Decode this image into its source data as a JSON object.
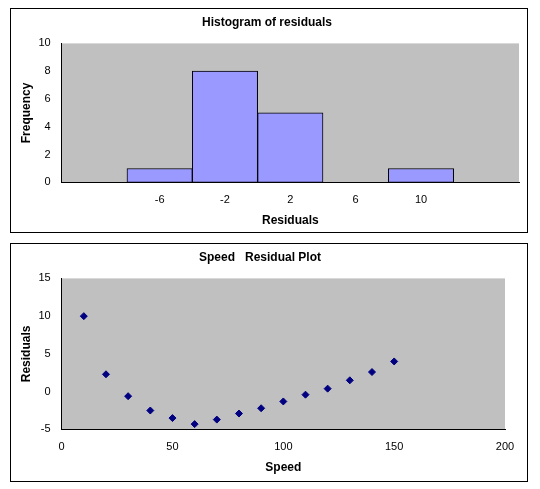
{
  "chart_data": [
    {
      "type": "histogram",
      "title": "Histogram of residuals",
      "x_label": "Residuals",
      "y_label": "Frequency",
      "bins": [
        -8,
        -4,
        0,
        4,
        8,
        12
      ],
      "values": [
        1,
        8,
        5,
        0,
        1
      ],
      "color": "#9999ff",
      "xlim": [
        -12,
        16
      ],
      "xticks": [
        -6,
        -2,
        2,
        6,
        10
      ],
      "ylim": [
        0,
        10
      ],
      "yticks": [
        0,
        2,
        4,
        6,
        8,
        10
      ],
      "grid": false
    },
    {
      "type": "scatter",
      "title": "Speed   Residual Plot",
      "x_label": "Speed",
      "y_label": "Residuals",
      "x": [
        10,
        20,
        30,
        40,
        50,
        60,
        70,
        80,
        90,
        100,
        110,
        120,
        130,
        140,
        150
      ],
      "values": [
        10,
        2.3,
        -0.6,
        -2.5,
        -3.5,
        -4.3,
        -3.7,
        -2.9,
        -2.2,
        -1.3,
        -0.4,
        0.4,
        1.5,
        2.6,
        4
      ],
      "color": "#000080",
      "marker": "diamond",
      "xlim": [
        0,
        200
      ],
      "xticks": [
        0,
        50,
        100,
        150,
        200
      ],
      "ylim": [
        -5,
        15
      ],
      "yticks": [
        -5,
        0,
        5,
        10,
        15
      ],
      "grid": false
    }
  ]
}
